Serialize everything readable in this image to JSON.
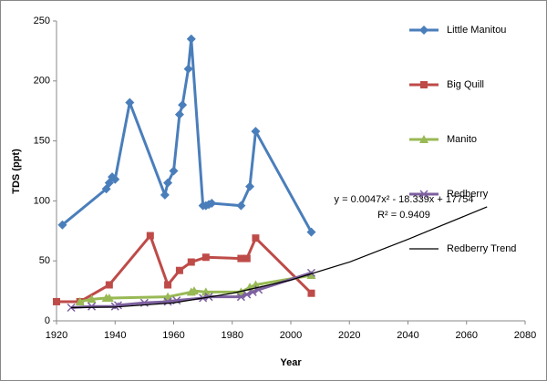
{
  "chart_data": {
    "type": "line",
    "x_label": "Year",
    "y_label": "TDS (ppt)",
    "xlim": [
      1920,
      2080
    ],
    "xticks": [
      1920,
      1940,
      1960,
      1980,
      2000,
      2020,
      2040,
      2060,
      2080
    ],
    "ylim": [
      0,
      250
    ],
    "yticks": [
      0,
      50,
      100,
      150,
      200,
      250
    ],
    "legend": "right",
    "annotations": [
      "y = 0.0047x² - 18.339x + 17754",
      "R² = 0.9409"
    ],
    "series": [
      {
        "name": "Little Manitou",
        "color": "#4a7ebb",
        "marker": "diamond",
        "x": [
          1922,
          1937,
          1938,
          1939,
          1940,
          1945,
          1957,
          1958,
          1960,
          1962,
          1963,
          1965,
          1966,
          1970,
          1971,
          1972,
          1973,
          1983,
          1986,
          1988,
          2007
        ],
        "values": [
          80,
          110,
          115,
          120,
          118,
          182,
          105,
          115,
          125,
          172,
          180,
          210,
          235,
          96,
          96,
          97,
          98,
          96,
          112,
          158,
          74
        ]
      },
      {
        "name": "Big Quill",
        "color": "#be4b48",
        "marker": "square",
        "x": [
          1920,
          1928,
          1938,
          1952,
          1958,
          1962,
          1966,
          1971,
          1983,
          1985,
          1988,
          2007
        ],
        "values": [
          16,
          16,
          30,
          71,
          30,
          42,
          49,
          53,
          52,
          52,
          69,
          23
        ]
      },
      {
        "name": "Manito",
        "color": "#98b954",
        "marker": "triangle",
        "x": [
          1928,
          1932,
          1937,
          1938,
          1958,
          1966,
          1967,
          1971,
          1983,
          1986,
          1988,
          2007
        ],
        "values": [
          16,
          18,
          19,
          19,
          20,
          24,
          25,
          24,
          24,
          28,
          30,
          38
        ]
      },
      {
        "name": "Redberry",
        "color": "#7d60a0",
        "marker": "x",
        "x": [
          1925,
          1932,
          1940,
          1941,
          1950,
          1958,
          1961,
          1970,
          1972,
          1983,
          1985,
          1987,
          1989,
          2007
        ],
        "values": [
          11,
          12,
          12,
          13,
          15,
          16,
          17,
          19,
          20,
          20,
          22,
          24,
          26,
          40
        ]
      },
      {
        "name": "Redberry Trend",
        "color": "#000000",
        "marker": "none",
        "x": [
          1925,
          1940,
          1960,
          1980,
          2000,
          2020,
          2040,
          2060,
          2067
        ],
        "values": [
          11,
          11.5,
          15,
          23,
          34,
          49,
          68,
          88,
          95
        ]
      }
    ]
  }
}
